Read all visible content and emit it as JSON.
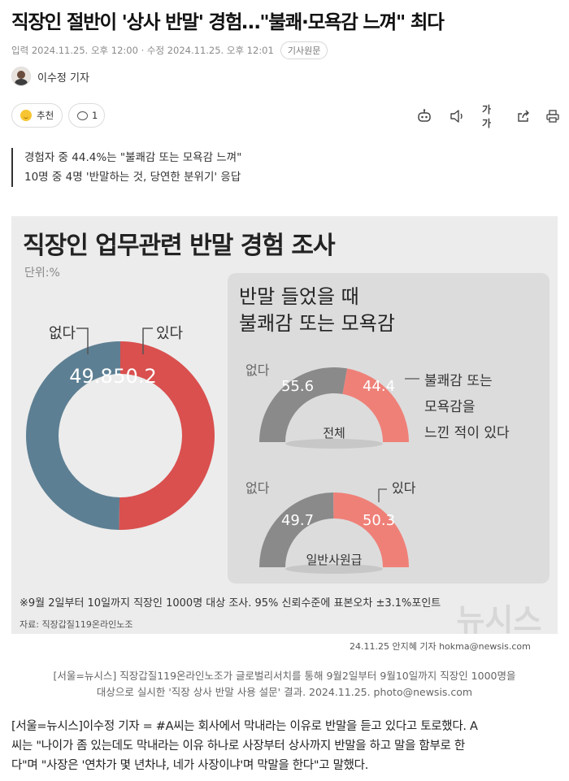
{
  "article": {
    "headline": "직장인 절반이 '상사 반말' 경험…\"불쾌·모욕감 느껴\" 최다",
    "meta": "입력 2024.11.25. 오후 12:00 · 수정 2024.11.25. 오후 12:01",
    "original_label": "기사원문",
    "author": "이수정 기자",
    "recommend_label": "추천",
    "comment_count": "1",
    "toolbar_font_label": "가가",
    "subtitle_lines": [
      "경험자 중 44.4%는 \"불쾌감 또는 모욕감 느껴\"",
      "10명 중 4명 '반말하는 것, 당연한 분위기' 응답"
    ],
    "caption_line1": "[서울=뉴시스] 직장갑질119온라인노조가 글로벌리서치를 통해 9월2일부터 9월10일까지 직장인 1000명을",
    "caption_line2": "대상으로 실시한 '직장 상사 반말 사용 설문' 결과. 2024.11.25. photo@newsis.com",
    "body_lines": [
      "[서울=뉴시스]이수정 기자 = #A씨는 회사에서 막내라는 이유로 반말을 듣고 있다고 토로했다. A",
      "씨는 \"나이가 좀 있는데도 막내라는 이유 하나로 사장부터 상사까지 반말을 하고 말을 함부로 한",
      "다\"며 \"사장은 '연차가 몇 년차냐, 네가 사장이냐'며 막말을 한다\"고 말했다."
    ]
  },
  "infographic": {
    "title": "직장인 업무관련 반말 경험 조사",
    "unit": "단위:%",
    "panel_title_line1": "반말 들었을 때",
    "panel_title_line2": "불쾌감 또는 모욕감",
    "note": "※9월 2일부터 10일까지 직장인 1000명 대상 조사. 95% 신뢰수준에 표본오차 ±3.1%포인트",
    "source": "자료: 직장갑질119온라인노조",
    "credit": "24.11.25 안지혜 기자 hokma@newsis.com",
    "watermark": "뉴시스"
  },
  "chart_data": [
    {
      "type": "pie",
      "categories": [
        "없다",
        "있다"
      ],
      "values": [
        49.8,
        50.2
      ],
      "title": "직장인 업무관련 반말 경험 조사",
      "unit": "단위:%",
      "colors": [
        "#5d7f93",
        "#d9504f"
      ]
    },
    {
      "type": "pie",
      "subset": "전체",
      "categories": [
        "없다",
        "불쾌감 또는 모욕감을 느낀 적이 있다"
      ],
      "values": [
        55.6,
        44.4
      ],
      "title": "반말 들었을 때 불쾌감 또는 모욕감",
      "colors": [
        "#8a8a8a",
        "#ef8078"
      ]
    },
    {
      "type": "pie",
      "subset": "일반사원급",
      "categories": [
        "없다",
        "있다"
      ],
      "values": [
        49.7,
        50.3
      ],
      "colors": [
        "#8a8a8a",
        "#ef8078"
      ]
    }
  ],
  "labels": {
    "legend_none": "없다",
    "legend_yes": "있다",
    "total_label": "전체",
    "staff_label": "일반사원급",
    "gauge1_callout_1": "불쾌감 또는",
    "gauge1_callout_2": "모욕감을",
    "gauge1_callout_3": "느낀 적이 있다"
  },
  "icon_names": [
    "recommend-smile-icon",
    "comment-bubble-icon",
    "robot-summary-icon",
    "speaker-icon",
    "font-size-icon",
    "share-icon",
    "print-icon"
  ]
}
